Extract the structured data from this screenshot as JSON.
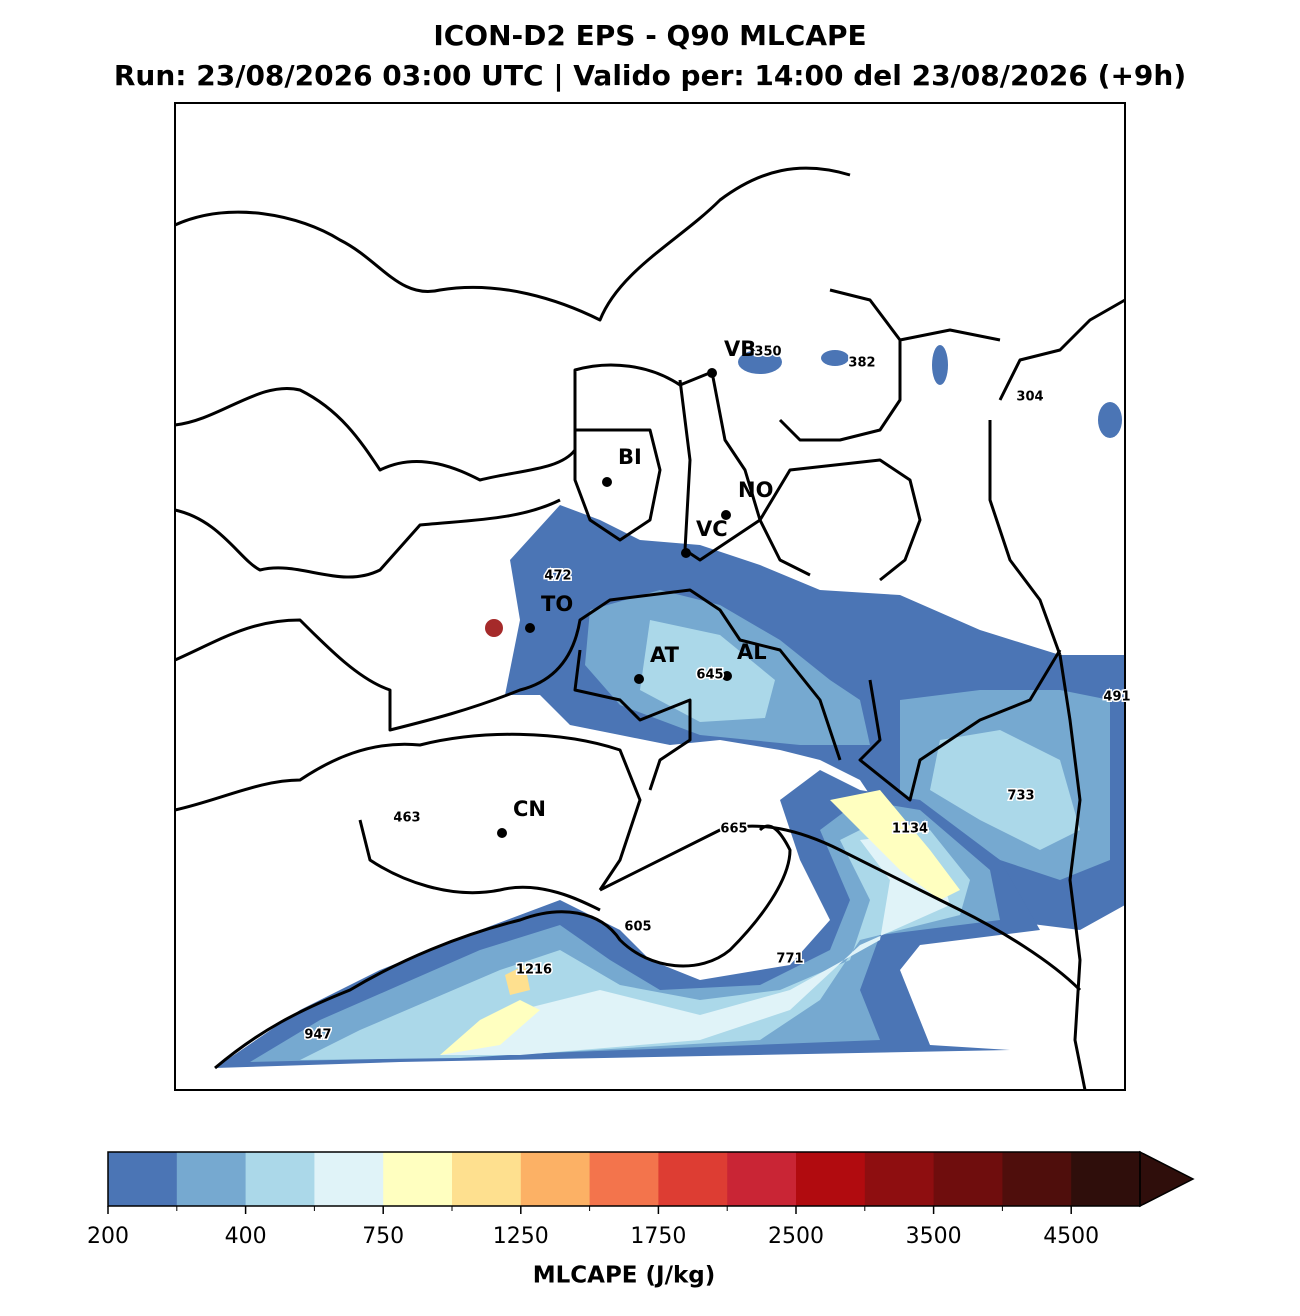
{
  "title": "ICON-D2 EPS - Q90 MLCAPE",
  "subtitle": "Run: 23/08/2026 03:00 UTC | Valido per: 14:00 del 23/08/2026 (+9h)",
  "cities": [
    "VB",
    "BI",
    "NO",
    "VC",
    "TO",
    "AT",
    "AL",
    "CN"
  ],
  "local_max": [
    350,
    382,
    304,
    472,
    645,
    491,
    733,
    1134,
    665,
    463,
    605,
    1216,
    771,
    947
  ],
  "colorbar": {
    "label": "MLCAPE (J/kg)",
    "ticks": [
      200,
      400,
      750,
      1250,
      1750,
      2500,
      3500,
      4500
    ],
    "colors": [
      "#4b75b5",
      "#76a9d0",
      "#abd8e9",
      "#e0f3f8",
      "#ffffc0",
      "#fee08f",
      "#fcb165",
      "#f3744c",
      "#dd3d33",
      "#c92535",
      "#b10b0f",
      "#8e0e10",
      "#6f0d0d",
      "#4f0e0c",
      "#2f0e0b"
    ]
  }
}
